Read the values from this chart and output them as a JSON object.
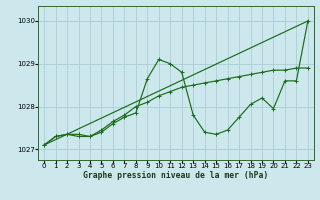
{
  "title": "Graphe pression niveau de la mer (hPa)",
  "bg_color": "#cce8ec",
  "grid_color": "#aacdd4",
  "line_color": "#1a6b1a",
  "xlim_min": -0.5,
  "xlim_max": 23.5,
  "ylim_min": 1026.75,
  "ylim_max": 1030.35,
  "yticks": [
    1027,
    1028,
    1029,
    1030
  ],
  "xticks": [
    0,
    1,
    2,
    3,
    4,
    5,
    6,
    7,
    8,
    9,
    10,
    11,
    12,
    13,
    14,
    15,
    16,
    17,
    18,
    19,
    20,
    21,
    22,
    23
  ],
  "series1_x": [
    0,
    1,
    2,
    3,
    4,
    5,
    6,
    7,
    8,
    9,
    10,
    11,
    12,
    13,
    14,
    15,
    16,
    17,
    18,
    19,
    20,
    21,
    22,
    23
  ],
  "series1_y": [
    1027.1,
    1027.3,
    1027.35,
    1027.35,
    1027.3,
    1027.4,
    1027.6,
    1027.75,
    1027.85,
    1028.65,
    1029.1,
    1029.0,
    1028.8,
    1027.8,
    1027.4,
    1027.35,
    1027.45,
    1027.75,
    1028.05,
    1028.2,
    1027.95,
    1028.6,
    1028.6,
    1030.0
  ],
  "series2_x": [
    0,
    1,
    2,
    3,
    4,
    5,
    6,
    7,
    8,
    9,
    10,
    11,
    12,
    13,
    14,
    15,
    16,
    17,
    18,
    19,
    20,
    21,
    22,
    23
  ],
  "series2_y": [
    1027.1,
    1027.3,
    1027.35,
    1027.3,
    1027.3,
    1027.45,
    1027.65,
    1027.8,
    1028.0,
    1028.1,
    1028.25,
    1028.35,
    1028.45,
    1028.5,
    1028.55,
    1028.6,
    1028.65,
    1028.7,
    1028.75,
    1028.8,
    1028.85,
    1028.85,
    1028.9,
    1028.9
  ],
  "series3_x": [
    0,
    23
  ],
  "series3_y": [
    1027.1,
    1030.0
  ],
  "label_fontsize": 5.8,
  "tick_fontsize": 5.0,
  "linewidth": 0.85,
  "markersize": 2.8
}
